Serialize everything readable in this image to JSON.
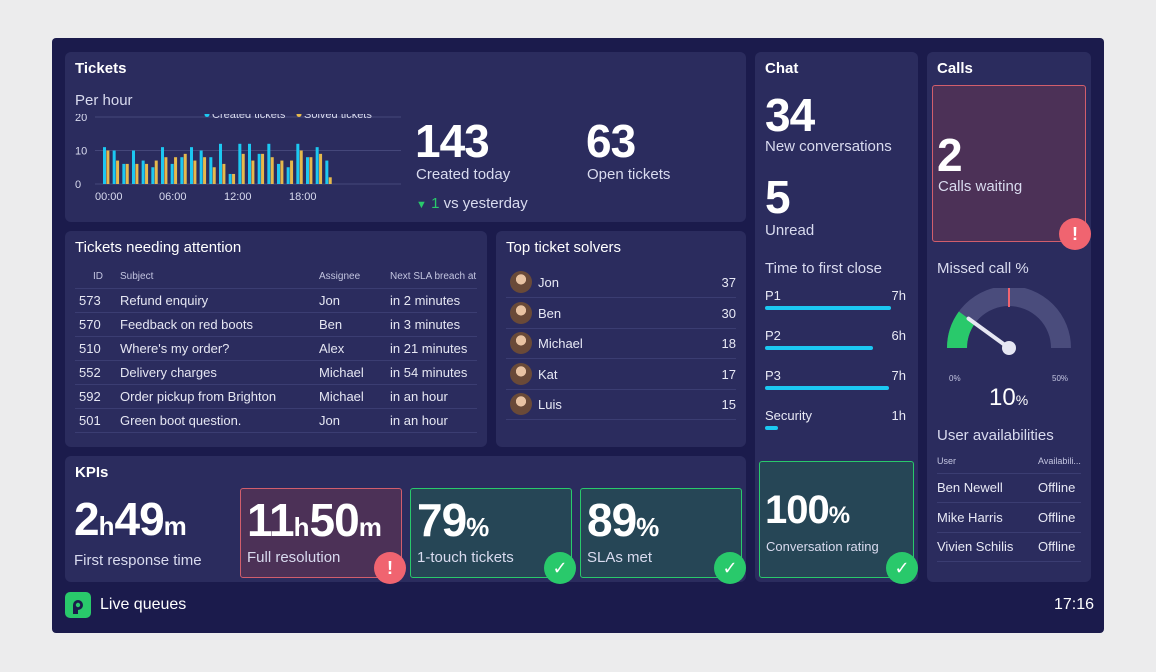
{
  "tickets": {
    "title": "Tickets",
    "chart_label": "Per hour",
    "created_today_value": "143",
    "created_today_label": "Created today",
    "open_value": "63",
    "open_label": "Open tickets",
    "vs_delta": "1",
    "vs_label": "vs yesterday"
  },
  "chart_data": {
    "type": "bar",
    "y_ticks": [
      "20",
      "10",
      "0"
    ],
    "x_ticks": [
      "00:00",
      "06:00",
      "12:00",
      "18:00"
    ],
    "ylim": [
      0,
      20
    ],
    "legend_position": "top-right",
    "series": [
      {
        "name": "Created tickets",
        "color": "#1cc8f2",
        "values": [
          11,
          10,
          6,
          10,
          7,
          5,
          11,
          6,
          8,
          11,
          10,
          8,
          12,
          3,
          12,
          12,
          9,
          12,
          6,
          5,
          12,
          8,
          11,
          7
        ]
      },
      {
        "name": "Solved tickets",
        "color": "#e6b94c",
        "values": [
          10,
          7,
          6,
          6,
          6,
          7,
          8,
          8,
          9,
          7,
          8,
          5,
          6,
          3,
          9,
          7,
          9,
          8,
          7,
          7,
          10,
          8,
          9,
          2
        ]
      }
    ]
  },
  "attention": {
    "title": "Tickets needing attention",
    "headers": {
      "id": "ID",
      "subject": "Subject",
      "assignee": "Assignee",
      "sla": "Next SLA breach at"
    },
    "rows": [
      {
        "id": "573",
        "subject": "Refund enquiry",
        "assignee": "Jon",
        "sla": "in 2 minutes"
      },
      {
        "id": "570",
        "subject": "Feedback on red boots",
        "assignee": "Ben",
        "sla": "in 3 minutes"
      },
      {
        "id": "510",
        "subject": "Where's my order?",
        "assignee": "Alex",
        "sla": "in 21 minutes"
      },
      {
        "id": "552",
        "subject": "Delivery charges",
        "assignee": "Michael",
        "sla": "in 54 minutes"
      },
      {
        "id": "592",
        "subject": "Order pickup from Brighton",
        "assignee": "Michael",
        "sla": "in an hour"
      },
      {
        "id": "501",
        "subject": "Green boot question.",
        "assignee": "Jon",
        "sla": "in an hour"
      }
    ]
  },
  "solvers": {
    "title": "Top ticket solvers",
    "rows": [
      {
        "name": "Jon",
        "count": "37"
      },
      {
        "name": "Ben",
        "count": "30"
      },
      {
        "name": "Michael",
        "count": "18"
      },
      {
        "name": "Kat",
        "count": "17"
      },
      {
        "name": "Luis",
        "count": "15"
      }
    ]
  },
  "chat": {
    "title": "Chat",
    "new_value": "34",
    "new_label": "New conversations",
    "unread_value": "5",
    "unread_label": "Unread",
    "ttfc_title": "Time to first close",
    "priorities": [
      {
        "label": "P1",
        "value": "7h",
        "fraction": 0.89
      },
      {
        "label": "P2",
        "value": "6h",
        "fraction": 0.76
      },
      {
        "label": "P3",
        "value": "7h",
        "fraction": 0.87
      },
      {
        "label": "Security",
        "value": "1h",
        "fraction": 0.09
      }
    ],
    "rating_value": "100",
    "rating_unit": "%",
    "rating_label": "Conversation rating"
  },
  "calls": {
    "title": "Calls",
    "waiting_value": "2",
    "waiting_label": "Calls waiting",
    "missed_title": "Missed call %",
    "gauge_min": "0%",
    "gauge_max": "50%",
    "gauge_value": "10",
    "gauge_unit": "%",
    "gauge_fraction": 0.2,
    "gauge_threshold_fraction": 0.5,
    "avail_title": "User availabilities",
    "avail_headers": {
      "user": "User",
      "status": "Availabili..."
    },
    "avail_rows": [
      {
        "user": "Ben Newell",
        "status": "Offline"
      },
      {
        "user": "Mike Harris",
        "status": "Offline"
      },
      {
        "user": "Vivien Schilis",
        "status": "Offline"
      }
    ]
  },
  "kpis": {
    "title": "KPIs",
    "frt_h": "2",
    "frt_h_unit": "h",
    "frt_m": "49",
    "frt_m_unit": "m",
    "frt_label": "First response time",
    "fr_h": "11",
    "fr_h_unit": "h",
    "fr_m": "50",
    "fr_m_unit": "m",
    "fr_label": "Full resolution",
    "touch_value": "79",
    "touch_unit": "%",
    "touch_label": "1-touch tickets",
    "sla_value": "89",
    "sla_unit": "%",
    "sla_label": "SLAs met"
  },
  "footer": {
    "app_name": "Live queues",
    "time": "17:16"
  },
  "colors": {
    "accent_cyan": "#1cc8f2",
    "accent_yellow": "#e6b94c",
    "ok_green": "#29c96b",
    "alert_red": "#f06470"
  }
}
